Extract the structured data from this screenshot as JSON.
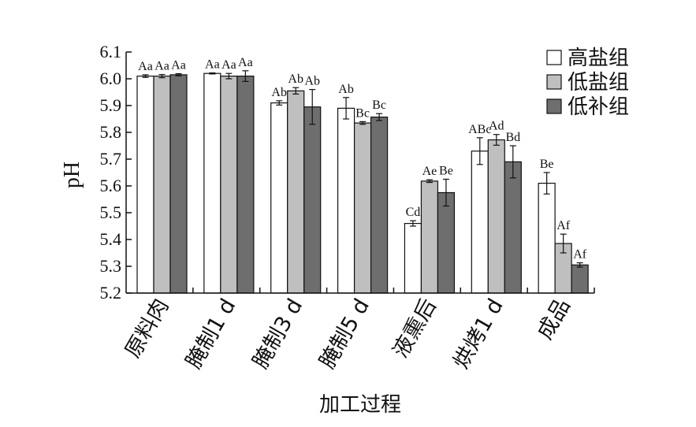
{
  "chart_data": {
    "type": "bar",
    "title": "",
    "xlabel": "加工过程",
    "ylabel": "pH",
    "ylim": [
      5.2,
      6.1
    ],
    "yticks": [
      "5.2",
      "5.3",
      "5.4",
      "5.5",
      "5.6",
      "5.7",
      "5.8",
      "5.9",
      "6.0",
      "6.1"
    ],
    "categories": [
      "原料肉",
      "腌制1 d",
      "腌制3 d",
      "腌制5 d",
      "液熏后",
      "烘烤1 d",
      "成品"
    ],
    "legend_position": "top-right",
    "grid": false,
    "series": [
      {
        "name": "高盐组",
        "color": "#ffffff",
        "values": [
          6.01,
          6.02,
          5.91,
          5.89,
          5.46,
          5.73,
          5.61
        ],
        "errors": [
          0.005,
          0.002,
          0.008,
          0.04,
          0.01,
          0.05,
          0.04
        ],
        "labels": [
          "Aa",
          "Aa",
          "Ab",
          "Ab",
          "Cd",
          "ABc",
          "Be"
        ]
      },
      {
        "name": "低盐组",
        "color": "#bfbfbf",
        "values": [
          6.01,
          6.01,
          5.955,
          5.835,
          5.618,
          5.772,
          5.385
        ],
        "errors": [
          0.006,
          0.01,
          0.012,
          0.005,
          0.005,
          0.02,
          0.035
        ],
        "labels": [
          "Aa",
          "Aa",
          "Ab",
          "Bc",
          "Ae",
          "Ad",
          "Af"
        ]
      },
      {
        "name": "低补组",
        "color": "#6e6e6e",
        "values": [
          6.015,
          6.01,
          5.895,
          5.857,
          5.575,
          5.69,
          5.305
        ],
        "errors": [
          0.004,
          0.02,
          0.065,
          0.013,
          0.05,
          0.06,
          0.008
        ],
        "labels": [
          "Aa",
          "Aa",
          "Ab",
          "Bc",
          "Be",
          "Bd",
          "Af"
        ]
      }
    ]
  }
}
